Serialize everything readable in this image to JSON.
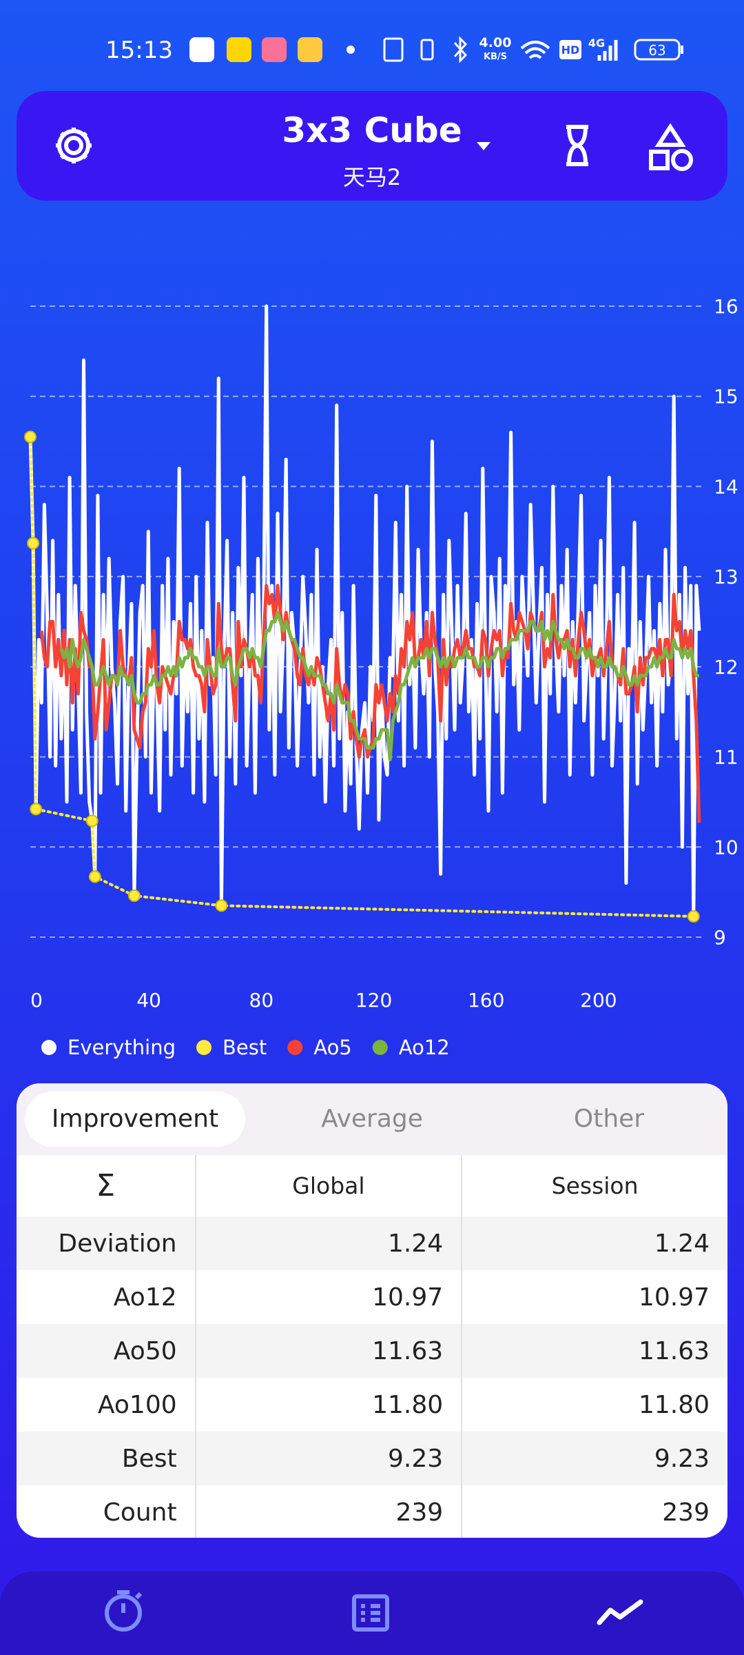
{
  "status_bar": {
    "time": "15:13",
    "speed": "4.00",
    "speed_unit": "KB/S",
    "hd": "HD",
    "network": "4G",
    "battery": "63"
  },
  "header": {
    "title": "3x3 Cube",
    "subtitle": "天马2"
  },
  "chart_data": {
    "type": "line",
    "x": [
      0,
      1,
      2,
      3,
      4,
      5,
      6,
      7,
      8,
      9,
      10,
      11,
      12,
      13,
      14,
      15,
      16,
      17,
      18,
      19,
      20,
      21,
      22,
      23,
      24,
      25,
      26,
      27,
      28,
      29,
      30,
      31,
      32,
      33,
      34,
      35,
      36,
      37,
      38,
      39,
      40,
      41,
      42,
      43,
      44,
      45,
      46,
      47,
      48,
      49,
      50,
      51,
      52,
      53,
      54,
      55,
      56,
      57,
      58,
      59,
      60,
      61,
      62,
      63,
      64,
      65,
      66,
      67,
      68,
      69,
      70,
      71,
      72,
      73,
      74,
      75,
      76,
      77,
      78,
      79,
      80,
      81,
      82,
      83,
      84,
      85,
      86,
      87,
      88,
      89,
      90,
      91,
      92,
      93,
      94,
      95,
      96,
      97,
      98,
      99,
      100,
      101,
      102,
      103,
      104,
      105,
      106,
      107,
      108,
      109,
      110,
      111,
      112,
      113,
      114,
      115,
      116,
      117,
      118,
      119,
      120,
      121,
      122,
      123,
      124,
      125,
      126,
      127,
      128,
      129,
      130,
      131,
      132,
      133,
      134,
      135,
      136,
      137,
      138,
      139,
      140,
      141,
      142,
      143,
      144,
      145,
      146,
      147,
      148,
      149,
      150,
      151,
      152,
      153,
      154,
      155,
      156,
      157,
      158,
      159,
      160,
      161,
      162,
      163,
      164,
      165,
      166,
      167,
      168,
      169,
      170,
      171,
      172,
      173,
      174,
      175,
      176,
      177,
      178,
      179,
      180,
      181,
      182,
      183,
      184,
      185,
      186,
      187,
      188,
      189,
      190,
      191,
      192,
      193,
      194,
      195,
      196,
      197,
      198,
      199,
      200,
      201,
      202,
      203,
      204,
      205,
      206,
      207,
      208,
      209,
      210,
      211,
      212,
      213,
      214,
      215,
      216,
      217,
      218,
      219,
      220,
      221,
      222,
      223,
      224,
      225,
      226,
      227,
      228,
      229,
      230,
      231,
      232,
      233,
      234,
      235,
      236,
      237,
      238
    ],
    "series": [
      {
        "name": "Everything",
        "color": "#ffffff",
        "values": [
          14.55,
          13.37,
          10.42,
          12.3,
          11.6,
          13.8,
          12.6,
          11.0,
          13.4,
          10.9,
          12.8,
          11.2,
          12.4,
          10.5,
          14.1,
          11.3,
          12.9,
          11.8,
          10.6,
          15.4,
          11.5,
          10.5,
          10.29,
          9.67,
          13.9,
          10.6,
          12.8,
          11.4,
          13.2,
          12.0,
          11.6,
          10.7,
          12.5,
          13.0,
          10.4,
          11.9,
          12.7,
          9.46,
          11.2,
          12.6,
          12.9,
          11.0,
          13.5,
          10.6,
          12.1,
          11.8,
          10.4,
          12.9,
          11.3,
          13.2,
          10.8,
          12.5,
          11.7,
          14.2,
          10.9,
          12.3,
          11.5,
          12.7,
          10.6,
          13.0,
          11.2,
          12.4,
          10.5,
          13.6,
          11.8,
          12.1,
          10.8,
          15.2,
          9.35,
          12.2,
          13.4,
          11.0,
          12.6,
          10.7,
          13.1,
          11.9,
          14.1,
          10.9,
          12.0,
          12.8,
          10.6,
          13.2,
          11.7,
          12.5,
          16.0,
          11.3,
          12.9,
          10.8,
          13.7,
          11.5,
          12.3,
          14.3,
          11.1,
          12.6,
          12.2,
          10.9,
          11.9,
          13.0,
          12.4,
          11.6,
          12.8,
          10.8,
          13.3,
          11.0,
          12.0,
          10.5,
          11.8,
          12.3,
          10.9,
          14.9,
          11.2,
          12.6,
          10.4,
          11.5,
          10.7,
          12.9,
          11.1,
          10.2,
          11.3,
          11.6,
          10.6,
          12.0,
          11.4,
          13.9,
          10.3,
          11.7,
          11.0,
          10.8,
          12.1,
          11.9,
          13.6,
          11.4,
          12.8,
          10.9,
          14.0,
          11.8,
          12.5,
          11.1,
          13.3,
          12.2,
          11.7,
          12.6,
          11.0,
          14.5,
          12.0,
          11.5,
          9.7,
          12.8,
          11.2,
          13.4,
          12.4,
          11.3,
          12.9,
          11.6,
          12.1,
          13.7,
          11.5,
          12.3,
          10.8,
          12.7,
          11.2,
          14.2,
          12.0,
          10.4,
          13.0,
          12.6,
          11.5,
          13.2,
          10.6,
          12.9,
          12.2,
          14.6,
          11.8,
          12.5,
          11.3,
          13.0,
          12.4,
          11.9,
          13.8,
          12.7,
          11.6,
          12.4,
          13.1,
          10.5,
          12.8,
          11.7,
          14.0,
          12.2,
          11.5,
          12.9,
          11.9,
          13.3,
          10.8,
          12.5,
          11.6,
          12.7,
          13.9,
          11.4,
          12.0,
          12.6,
          10.8,
          12.9,
          11.9,
          13.4,
          11.2,
          12.3,
          14.1,
          10.9,
          11.7,
          12.8,
          11.4,
          13.1,
          9.6,
          12.2,
          11.8,
          13.6,
          10.7,
          12.5,
          11.3,
          12.0,
          13.0,
          11.6,
          12.4,
          10.9,
          12.7,
          11.5,
          13.3,
          11.8,
          12.1,
          15.0,
          11.2,
          12.8,
          10.0,
          13.1,
          11.7,
          12.9,
          9.23,
          12.9,
          12.4
        ]
      },
      {
        "name": "Best",
        "color": "#ffeb3b",
        "line_style": "dotted",
        "markers": true,
        "x": [
          0,
          1,
          2,
          22,
          23,
          37,
          68,
          236
        ],
        "values": [
          14.55,
          13.37,
          10.42,
          10.29,
          9.67,
          9.46,
          9.35,
          9.23
        ]
      },
      {
        "name": "Ao5",
        "color": "#f44336",
        "values": [
          null,
          null,
          null,
          null,
          12.4,
          12.1,
          12.0,
          12.5,
          12.5,
          12.0,
          12.3,
          11.9,
          12.4,
          11.8,
          12.3,
          11.6,
          12.2,
          11.7,
          12.6,
          12.4,
          12.3,
          12.0,
          12.0,
          11.2,
          11.5,
          11.9,
          12.3,
          11.3,
          11.6,
          11.9,
          11.9,
          11.8,
          12.4,
          12.0,
          11.9,
          11.8,
          12.1,
          11.3,
          11.2,
          11.1,
          11.5,
          11.6,
          12.2,
          12.0,
          12.4,
          11.8,
          11.6,
          12.0,
          11.9,
          11.8,
          11.7,
          11.9,
          11.9,
          12.5,
          12.3,
          12.3,
          12.2,
          12.3,
          12.0,
          11.9,
          11.9,
          11.8,
          11.5,
          12.3,
          12.0,
          11.7,
          11.8,
          12.7,
          12.2,
          12.0,
          12.2,
          12.2,
          11.8,
          11.4,
          12.5,
          12.0,
          12.3,
          12.2,
          12.0,
          12.2,
          11.9,
          11.9,
          11.6,
          12.3,
          12.9,
          12.7,
          12.8,
          12.5,
          12.9,
          12.6,
          12.3,
          12.6,
          12.4,
          12.3,
          12.2,
          11.9,
          11.8,
          12.2,
          11.9,
          11.8,
          12.0,
          11.8,
          12.1,
          12.0,
          11.8,
          11.6,
          11.4,
          11.7,
          11.3,
          12.2,
          11.8,
          11.6,
          11.8,
          11.7,
          11.2,
          11.5,
          11.2,
          11.0,
          11.2,
          11.3,
          11.0,
          11.1,
          11.2,
          11.8,
          11.6,
          11.8,
          11.6,
          11.4,
          11.7,
          11.5,
          11.9,
          11.7,
          12.2,
          12.0,
          12.5,
          12.3,
          12.6,
          12.0,
          12.1,
          12.3,
          12.1,
          12.5,
          11.9,
          12.6,
          12.3,
          12.1,
          11.4,
          12.3,
          11.8,
          12.1,
          12.0,
          12.2,
          12.3,
          12.1,
          12.2,
          12.4,
          12.2,
          12.2,
          12.0,
          12.0,
          11.9,
          12.4,
          12.3,
          11.9,
          12.2,
          12.4,
          12.3,
          12.4,
          11.9,
          12.2,
          12.1,
          12.7,
          12.4,
          12.3,
          12.6,
          12.5,
          12.4,
          12.2,
          12.6,
          12.5,
          12.4,
          12.4,
          12.6,
          12.0,
          12.2,
          12.1,
          12.8,
          12.3,
          12.1,
          12.3,
          12.3,
          12.4,
          12.0,
          12.3,
          11.9,
          12.3,
          12.6,
          12.4,
          12.1,
          12.3,
          11.9,
          12.1,
          12.1,
          12.2,
          11.9,
          12.2,
          12.5,
          12.0,
          12.0,
          11.9,
          11.8,
          12.2,
          11.7,
          11.7,
          11.8,
          12.0,
          11.5,
          12.1,
          11.8,
          12.1,
          12.1,
          12.2,
          12.2,
          12.1,
          12.3,
          11.9,
          12.3,
          12.3,
          11.9,
          12.8,
          12.4,
          12.5,
          12.1,
          12.4,
          12.2,
          12.4,
          11.9,
          11.4,
          10.27
        ]
      },
      {
        "name": "Ao12",
        "color": "#7cb342",
        "values": [
          null,
          null,
          null,
          null,
          null,
          null,
          null,
          null,
          null,
          null,
          null,
          12.2,
          12.1,
          12.2,
          12.0,
          12.3,
          12.1,
          12.0,
          12.1,
          12.3,
          12.2,
          12.1,
          12.0,
          11.8,
          11.8,
          11.9,
          12.0,
          11.9,
          11.8,
          11.9,
          11.9,
          11.8,
          12.0,
          11.9,
          11.9,
          11.8,
          11.9,
          11.7,
          11.6,
          11.6,
          11.7,
          11.7,
          11.8,
          11.8,
          11.9,
          11.8,
          11.8,
          11.9,
          11.9,
          12.0,
          11.9,
          12.0,
          11.9,
          12.1,
          12.0,
          12.1,
          12.1,
          12.2,
          12.1,
          12.1,
          12.0,
          12.0,
          11.9,
          12.0,
          12.0,
          11.9,
          11.9,
          12.2,
          12.0,
          12.0,
          12.1,
          12.1,
          11.9,
          11.8,
          12.0,
          12.1,
          12.2,
          12.2,
          12.1,
          12.2,
          12.1,
          12.1,
          12.0,
          12.2,
          12.4,
          12.4,
          12.5,
          12.5,
          12.6,
          12.5,
          12.4,
          12.5,
          12.4,
          12.3,
          12.3,
          12.2,
          12.1,
          12.1,
          12.0,
          11.9,
          12.0,
          11.9,
          11.9,
          11.9,
          11.8,
          11.8,
          11.7,
          11.7,
          11.6,
          11.8,
          11.7,
          11.6,
          11.6,
          11.6,
          11.4,
          11.4,
          11.3,
          11.2,
          11.2,
          11.2,
          11.1,
          11.1,
          11.1,
          11.2,
          11.2,
          11.3,
          11.3,
          11.3,
          10.97,
          11.4,
          11.5,
          11.6,
          11.8,
          11.8,
          11.9,
          12.0,
          12.1,
          12.0,
          12.1,
          12.1,
          12.1,
          12.2,
          12.1,
          12.2,
          12.2,
          12.1,
          12.0,
          12.1,
          12.0,
          12.1,
          12.1,
          12.0,
          12.1,
          12.1,
          12.1,
          12.2,
          12.1,
          12.1,
          12.1,
          12.0,
          12.0,
          12.1,
          12.1,
          12.0,
          12.1,
          12.1,
          12.2,
          12.2,
          12.1,
          12.2,
          12.2,
          12.3,
          12.3,
          12.3,
          12.4,
          12.4,
          12.4,
          12.4,
          12.5,
          12.5,
          12.4,
          12.4,
          12.5,
          12.3,
          12.4,
          12.3,
          12.5,
          12.4,
          12.3,
          12.3,
          12.2,
          12.3,
          12.2,
          12.2,
          12.1,
          12.1,
          12.2,
          12.2,
          12.1,
          12.2,
          12.1,
          12.1,
          12.0,
          12.1,
          12.0,
          12.0,
          12.1,
          12.0,
          12.0,
          11.9,
          11.9,
          12.0,
          11.9,
          11.8,
          11.8,
          11.9,
          11.8,
          11.9,
          11.9,
          11.9,
          12.0,
          12.0,
          12.1,
          12.0,
          12.1,
          12.1,
          12.2,
          12.1,
          12.1,
          12.3,
          12.2,
          12.2,
          12.1,
          12.2,
          12.1,
          12.2,
          12.0,
          11.9,
          11.9
        ]
      }
    ],
    "xlim": [
      0,
      239
    ],
    "xticks": [
      0,
      40,
      80,
      120,
      160,
      200
    ],
    "ylim": [
      9,
      16
    ],
    "yticks": [
      9,
      10,
      11,
      12,
      13,
      14,
      15,
      16
    ],
    "grid": true,
    "legend": "bottom-left"
  },
  "tabs": [
    "Improvement",
    "Average",
    "Other"
  ],
  "table": {
    "header": [
      "Σ",
      "Global",
      "Session"
    ],
    "rows": [
      [
        "Deviation",
        "1.24",
        "1.24"
      ],
      [
        "Ao12",
        "10.97",
        "10.97"
      ],
      [
        "Ao50",
        "11.63",
        "11.63"
      ],
      [
        "Ao100",
        "11.80",
        "11.80"
      ],
      [
        "Best",
        "9.23",
        "9.23"
      ],
      [
        "Count",
        "239",
        "239"
      ]
    ]
  }
}
